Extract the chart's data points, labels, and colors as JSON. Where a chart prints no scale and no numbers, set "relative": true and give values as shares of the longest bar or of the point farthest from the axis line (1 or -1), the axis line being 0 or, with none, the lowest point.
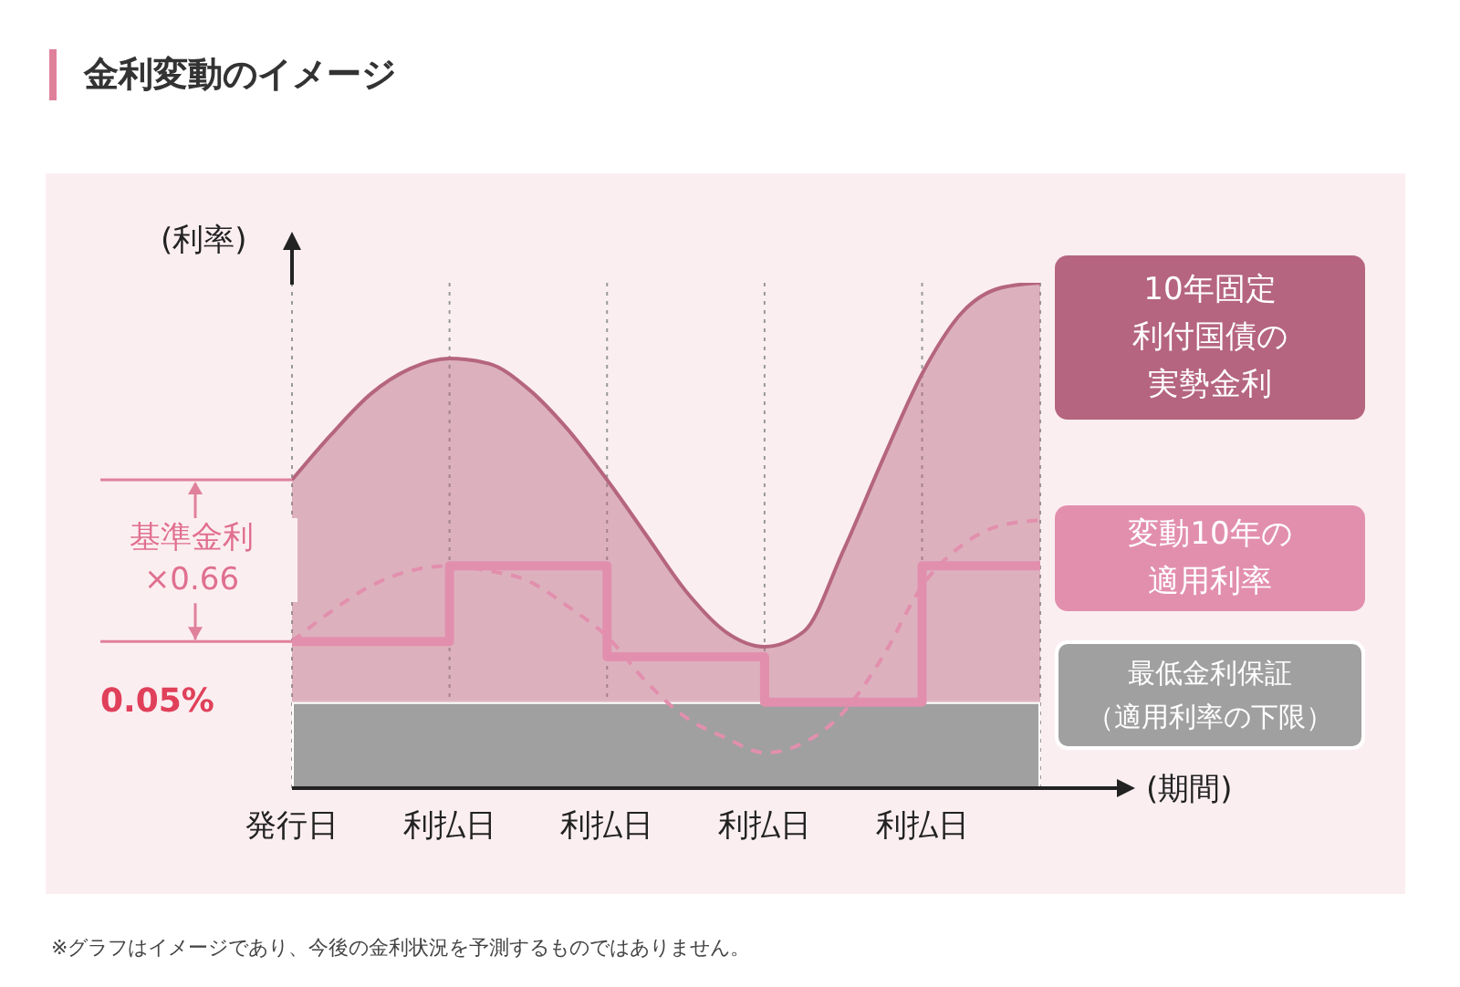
{
  "chart_data": {
    "type": "area",
    "title": "金利変動のイメージ",
    "xlabel": "(期間)",
    "ylabel": "(利率)",
    "relative": true,
    "legend": "right",
    "grid": "x",
    "categories": [
      "発行日",
      null,
      null,
      null,
      "利払日",
      null,
      null,
      null,
      "利払日",
      null,
      null,
      null,
      "利払日",
      null,
      null,
      null,
      "利払日",
      null,
      null,
      null
    ],
    "series": [
      {
        "name": "10年固定利付国債の実勢金利",
        "color": "#b5657f",
        "values": [
          0.61,
          0.7,
          0.78,
          0.83,
          0.85,
          0.84,
          0.79,
          0.71,
          0.61,
          0.5,
          0.39,
          0.31,
          0.28,
          0.31,
          0.47,
          0.65,
          0.82,
          0.94,
          0.99,
          1.0
        ]
      },
      {
        "type": "line",
        "color": "#e28fae",
        "line_style": "dashed",
        "values": [
          0.29,
          0.35,
          0.4,
          0.43,
          0.44,
          0.43,
          0.41,
          0.36,
          0.3,
          0.21,
          0.14,
          0.1,
          0.07,
          0.09,
          0.15,
          0.26,
          0.4,
          0.48,
          0.52,
          0.53
        ]
      },
      {
        "name": "変動10年の適用利率",
        "type": "step",
        "color": "#e28fae",
        "values": [
          0.29,
          0.29,
          0.29,
          0.29,
          0.44,
          0.44,
          0.44,
          0.44,
          0.26,
          0.26,
          0.26,
          0.26,
          0.17,
          0.17,
          0.17,
          0.17,
          0.44,
          0.44,
          0.44,
          0.44
        ]
      }
    ],
    "bands": [
      {
        "axis": "y",
        "from": 0,
        "to": 0.17,
        "color": "#a0a0a0",
        "label": "最低金利保証（適用利率の下限）"
      }
    ],
    "annotations": [
      {
        "text": "基準金利\n×0.66",
        "x": "発行日",
        "y": 0.29
      },
      "0.05%",
      "※グラフはイメージであり、今後の金利状況を予測するものではありません。"
    ]
  }
}
